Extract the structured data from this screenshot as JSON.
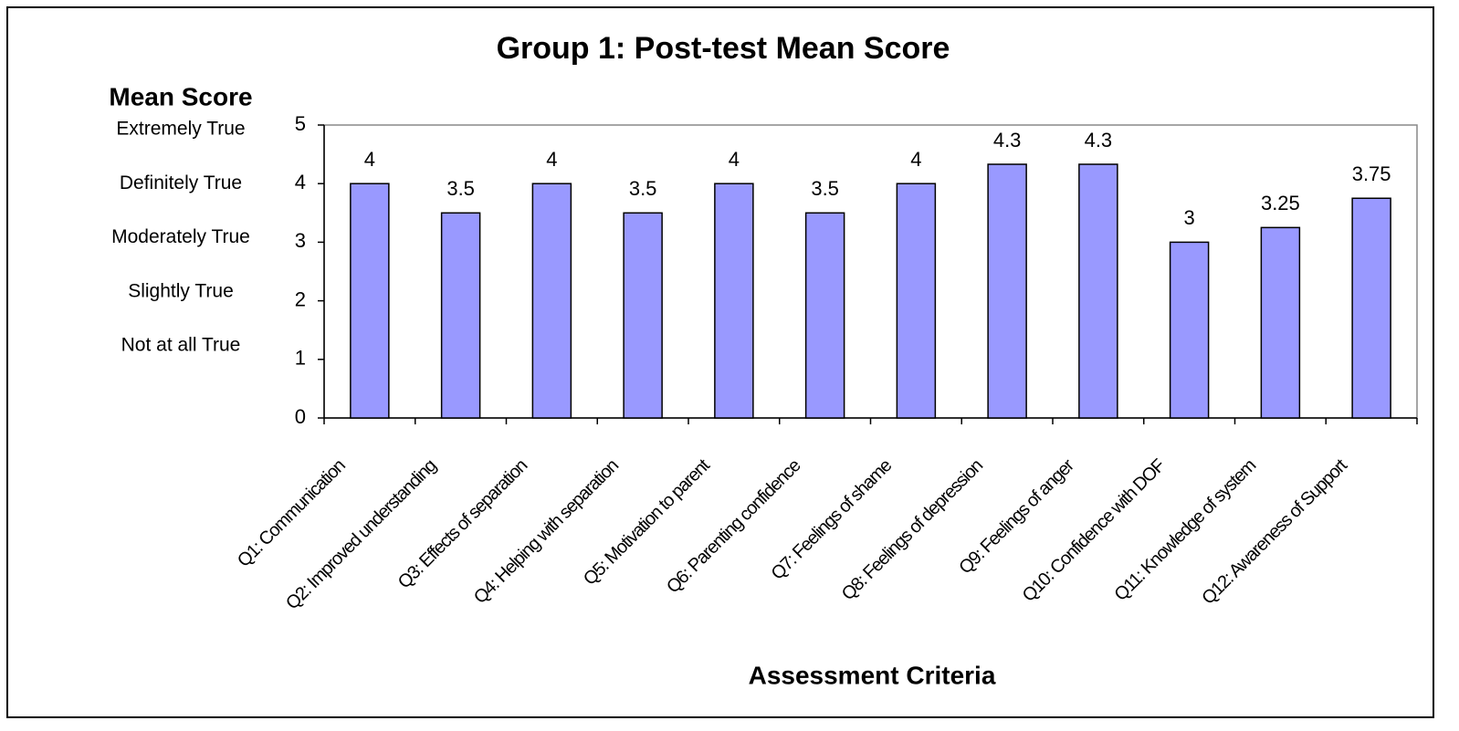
{
  "chart_data": {
    "type": "bar",
    "title": "Group 1: Post-test Mean Score",
    "y_label": "Mean Score",
    "x_label": "Assessment Criteria",
    "y_level_labels": [
      "Extremely True",
      "Definitely True",
      "Moderately True",
      "Slightly True",
      "Not at all True"
    ],
    "categories": [
      "Q1: Communication",
      "Q2: Improved understanding",
      "Q3: Effects of separation",
      "Q4: Helping with separation",
      "Q5: Motivation to parent",
      "Q6: Parenting confidence",
      "Q7: Feelings of shame",
      "Q8: Feelings of depression",
      "Q9: Feelings of anger",
      "Q10: Confidence with DOF",
      "Q11: Knowledge of system",
      "Q12: Awareness of Support"
    ],
    "values": [
      4,
      3.5,
      4,
      3.5,
      4,
      3.5,
      4,
      4.33,
      4.33,
      3,
      3.25,
      3.75
    ],
    "value_labels": [
      "4",
      "3.5",
      "4",
      "3.5",
      "4",
      "3.5",
      "4",
      "4.3",
      "4.3",
      "3",
      "3.25",
      "3.75"
    ],
    "color": "#9999ff",
    "ylim": [
      0,
      5
    ],
    "yticks": [
      0,
      1,
      2,
      3,
      4,
      5
    ],
    "grid": false
  }
}
